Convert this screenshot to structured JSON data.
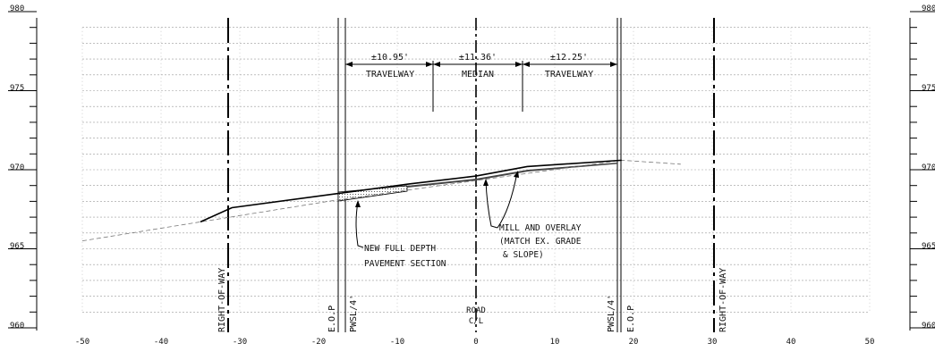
{
  "elevation_scale": {
    "labels": [
      "980",
      "975",
      "970",
      "965",
      "960"
    ],
    "values": [
      980,
      975,
      970,
      965,
      960
    ]
  },
  "station_axis": {
    "labels": [
      "-50",
      "-40",
      "-30",
      "-20",
      "-10",
      "0",
      "10",
      "20",
      "30",
      "40",
      "50"
    ],
    "values": [
      -50,
      -40,
      -30,
      -20,
      -10,
      0,
      10,
      20,
      30,
      40,
      50
    ]
  },
  "dimensions": [
    {
      "value": "±10.95'",
      "label": "TRAVELWAY"
    },
    {
      "value": "±11.36'",
      "label": "MEDIAN"
    },
    {
      "value": "±12.25'",
      "label": "TRAVELWAY"
    }
  ],
  "vertical_labels": {
    "row_left": "RIGHT-OF-WAY",
    "eop_left": "E.O.P",
    "pwsl_left": "PWSL/4'",
    "pwsl_right": "PWSL/4'",
    "eop_right": "E.O.P",
    "row_right": "RIGHT-OF-WAY"
  },
  "centerline_label": [
    "ROAD",
    "C/L"
  ],
  "callouts": {
    "full_depth": [
      "NEW FULL DEPTH",
      "PAVEMENT SECTION"
    ],
    "mill_overlay": [
      "MILL AND OVERLAY",
      "(MATCH EX. GRADE",
      "& SLOPE)"
    ]
  },
  "proposed_profile": {
    "x": [
      -35,
      -31,
      -17.5,
      -8.5,
      0,
      6.5,
      18.5
    ],
    "y": [
      966.7,
      967.6,
      968.5,
      969.1,
      969.6,
      970.2,
      970.6
    ]
  },
  "existing_ground": {
    "x": [
      -50,
      -17.5,
      18.5,
      26
    ],
    "y": [
      965.5,
      968.1,
      970.6,
      970.35
    ]
  }
}
